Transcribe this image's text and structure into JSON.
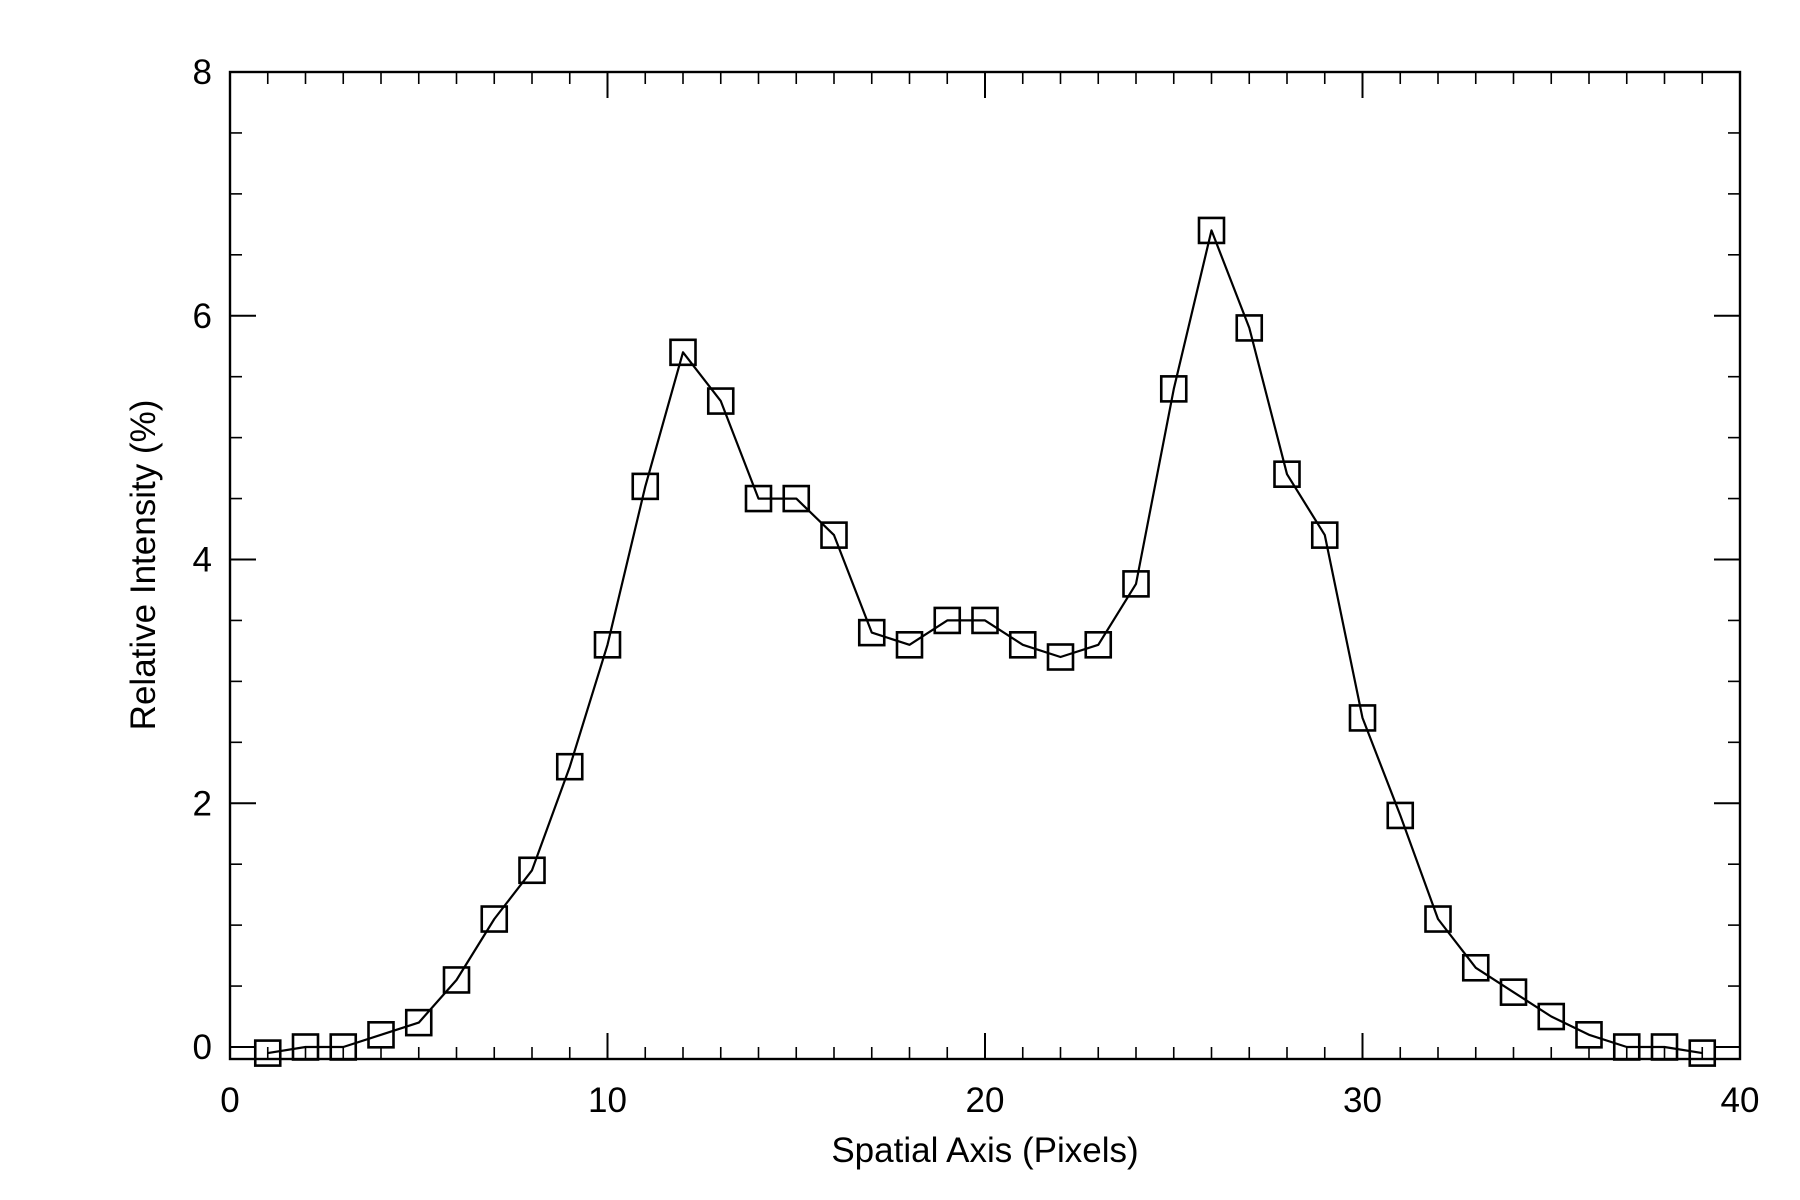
{
  "chart_data": {
    "type": "line",
    "title": "",
    "xlabel": "Spatial Axis (Pixels)",
    "ylabel": "Relative Intensity (%)",
    "xlim": [
      0,
      40
    ],
    "ylim": [
      0,
      8
    ],
    "xticks": [
      0,
      10,
      20,
      30,
      40
    ],
    "xtick_labels": [
      "0",
      "10",
      "20",
      "30",
      "40"
    ],
    "yticks": [
      0,
      2,
      4,
      6,
      8
    ],
    "ytick_labels": [
      "0",
      "2",
      "4",
      "6",
      "8"
    ],
    "grid": false,
    "marker": "square-open",
    "line_color": "#000000",
    "series": [
      {
        "x": [
          1,
          2,
          3,
          4,
          5,
          6,
          7,
          8,
          9,
          10,
          11,
          12,
          13,
          14,
          15,
          16,
          17,
          18,
          19,
          20,
          21,
          22,
          23,
          24,
          25,
          26,
          27,
          28,
          29,
          30,
          31,
          32,
          33,
          34,
          35,
          36,
          37,
          38,
          39
        ],
        "y": [
          -0.05,
          0.0,
          0.0,
          0.1,
          0.2,
          0.55,
          1.05,
          1.45,
          2.3,
          3.3,
          4.6,
          5.7,
          5.3,
          4.5,
          4.5,
          4.2,
          3.4,
          3.3,
          3.5,
          3.5,
          3.3,
          3.2,
          3.3,
          3.8,
          5.4,
          6.7,
          5.9,
          4.7,
          4.2,
          2.7,
          1.9,
          1.05,
          0.65,
          0.45,
          0.25,
          0.1,
          0.0,
          0.0,
          -0.05
        ]
      }
    ]
  }
}
